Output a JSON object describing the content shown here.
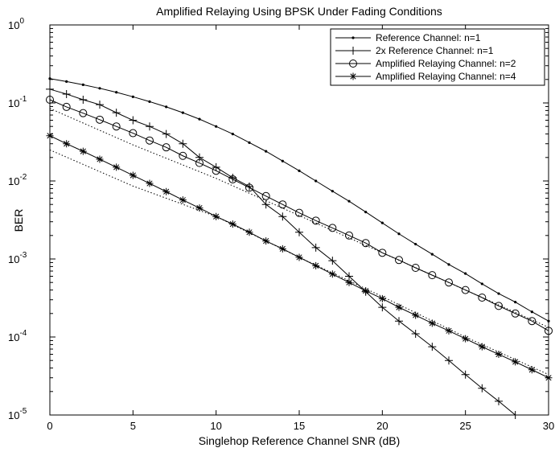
{
  "chart_data": {
    "type": "line",
    "title": "Amplified Relaying Using BPSK Under Fading Conditions",
    "xlabel": "Singlehop Reference Channel SNR (dB)",
    "ylabel": "BER",
    "xlim": [
      0,
      30
    ],
    "ylim": [
      1e-05,
      1
    ],
    "yscale": "log",
    "grid": false,
    "legend_position": "top-right",
    "x_ticks": [
      "0",
      "5",
      "10",
      "15",
      "20",
      "25",
      "30"
    ],
    "y_ticks": [
      {
        "base": "10",
        "exp": "0"
      },
      {
        "base": "10",
        "exp": "-1"
      },
      {
        "base": "10",
        "exp": "-2"
      },
      {
        "base": "10",
        "exp": "-3"
      },
      {
        "base": "10",
        "exp": "-4"
      },
      {
        "base": "10",
        "exp": "-5"
      }
    ],
    "series": [
      {
        "name": "Reference Channel: n=1",
        "marker": "dot",
        "x": [
          0,
          1,
          2,
          3,
          4,
          5,
          6,
          7,
          8,
          9,
          10,
          11,
          12,
          13,
          14,
          15,
          16,
          17,
          18,
          19,
          20,
          21,
          22,
          23,
          24,
          25,
          26,
          27,
          28,
          29,
          30
        ],
        "y": [
          0.205,
          0.188,
          0.171,
          0.154,
          0.137,
          0.12,
          0.104,
          0.089,
          0.075,
          0.062,
          0.05,
          0.04,
          0.031,
          0.024,
          0.018,
          0.0135,
          0.01,
          0.0074,
          0.0055,
          0.004,
          0.0029,
          0.0021,
          0.00155,
          0.00115,
          0.00085,
          0.00065,
          0.00048,
          0.00036,
          0.00028,
          0.00021,
          0.00016
        ]
      },
      {
        "name": "2x Reference Channel: n=1",
        "marker": "plus",
        "x": [
          0,
          1,
          2,
          3,
          4,
          5,
          6,
          7,
          8,
          9,
          10,
          11,
          12,
          13,
          14,
          15,
          16,
          17,
          18,
          19,
          20,
          21,
          22,
          23,
          24,
          25,
          26,
          27,
          28
        ],
        "y": [
          0.15,
          0.13,
          0.11,
          0.095,
          0.075,
          0.06,
          0.05,
          0.04,
          0.03,
          0.02,
          0.015,
          0.011,
          0.0085,
          0.005,
          0.0035,
          0.0022,
          0.0014,
          0.00095,
          0.0006,
          0.00038,
          0.00024,
          0.00016,
          0.00011,
          7.5e-05,
          5e-05,
          3.3e-05,
          2.2e-05,
          1.5e-05,
          1e-05
        ]
      },
      {
        "name": "Amplified Relaying Channel: n=2",
        "marker": "circle",
        "x": [
          0,
          1,
          2,
          3,
          4,
          5,
          6,
          7,
          8,
          9,
          10,
          11,
          12,
          13,
          14,
          15,
          16,
          17,
          18,
          19,
          20,
          21,
          22,
          23,
          24,
          25,
          26,
          27,
          28,
          29,
          30
        ],
        "y": [
          0.11,
          0.089,
          0.074,
          0.061,
          0.05,
          0.041,
          0.033,
          0.027,
          0.021,
          0.017,
          0.0135,
          0.0105,
          0.0082,
          0.0064,
          0.005,
          0.0039,
          0.0031,
          0.0025,
          0.002,
          0.0016,
          0.0012,
          0.00097,
          0.00077,
          0.00062,
          0.0005,
          0.0004,
          0.00032,
          0.00025,
          0.0002,
          0.00016,
          0.00012
        ]
      },
      {
        "name": "Amplified Relaying Channel: n=4",
        "marker": "star",
        "x": [
          0,
          1,
          2,
          3,
          4,
          5,
          6,
          7,
          8,
          9,
          10,
          11,
          12,
          13,
          14,
          15,
          16,
          17,
          18,
          19,
          20,
          21,
          22,
          23,
          24,
          25,
          26,
          27,
          28,
          29,
          30
        ],
        "y": [
          0.038,
          0.03,
          0.024,
          0.019,
          0.015,
          0.0118,
          0.0093,
          0.0073,
          0.0057,
          0.0045,
          0.0035,
          0.0028,
          0.0022,
          0.0017,
          0.00135,
          0.00105,
          0.00082,
          0.00064,
          0.0005,
          0.00039,
          0.00031,
          0.00024,
          0.00019,
          0.00015,
          0.00012,
          9.5e-05,
          7.5e-05,
          6e-05,
          4.8e-05,
          3.8e-05,
          3e-05
        ]
      }
    ],
    "dotted_reference_lines": [
      {
        "x": [
          0,
          5,
          10,
          15,
          20,
          25,
          30
        ],
        "y": [
          0.085,
          0.029,
          0.0108,
          0.0036,
          0.0012,
          0.0004,
          0.000133
        ]
      },
      {
        "x": [
          0,
          5,
          10,
          15,
          20,
          25,
          30
        ],
        "y": [
          0.025,
          0.0086,
          0.0035,
          0.00105,
          0.00033,
          0.0001,
          3.3e-05
        ]
      }
    ]
  }
}
